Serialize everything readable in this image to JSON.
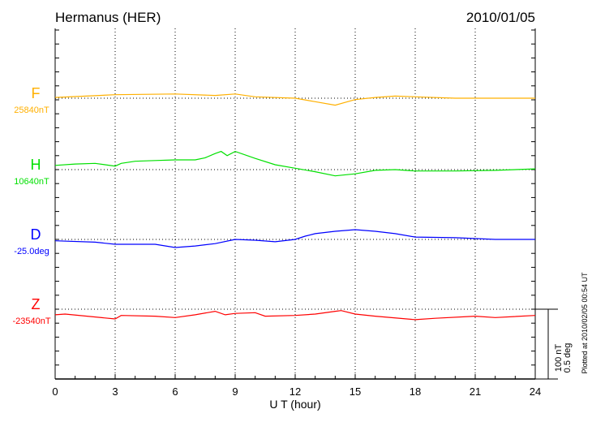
{
  "header": {
    "station": "Hermanus (HER)",
    "date": "2010/01/05"
  },
  "footer": {
    "plotted": "Plotted at 2010/02/05 00:54 UT"
  },
  "scale": {
    "nt": "100 nT",
    "deg": "0.5 deg"
  },
  "chart_data": {
    "type": "line",
    "xlabel": "U T (hour)",
    "xlim": [
      0,
      24
    ],
    "xticks": [
      "0",
      "3",
      "6",
      "9",
      "12",
      "15",
      "18",
      "21",
      "24"
    ],
    "grid": "dotted vertical every 3 hours, dotted baseline per component",
    "series": [
      {
        "name": "F",
        "baseline_label": "25840nT",
        "unit": "nT",
        "color": "#ffb000",
        "x": [
          0,
          3,
          6,
          8,
          9,
          10,
          12,
          13,
          14,
          15,
          16,
          17,
          18,
          20,
          24
        ],
        "y": [
          1,
          5,
          6,
          4,
          6,
          2,
          0,
          -5,
          -10,
          -2,
          1,
          3,
          2,
          0,
          0
        ]
      },
      {
        "name": "H",
        "baseline_label": "10640nT",
        "unit": "nT",
        "color": "#00e000",
        "x": [
          0,
          1,
          2,
          3,
          3.3,
          4,
          5,
          6,
          7,
          7.5,
          8,
          8.3,
          8.6,
          9,
          10,
          11,
          12,
          13,
          14,
          15,
          16,
          17,
          18,
          20,
          22,
          24
        ],
        "y": [
          6,
          8,
          9,
          5,
          9,
          12,
          13,
          14,
          14,
          17,
          23,
          26,
          20,
          26,
          16,
          7,
          2,
          -3,
          -9,
          -6,
          -1,
          0,
          -2,
          -2,
          -1,
          1
        ]
      },
      {
        "name": "D",
        "baseline_label": "-25.0deg",
        "unit": "deg",
        "color": "#0000ff",
        "x": [
          0,
          2,
          3,
          5,
          6,
          7,
          8,
          9,
          10,
          11,
          12,
          12.5,
          13,
          14,
          15,
          16,
          17,
          18,
          20,
          22,
          24
        ],
        "y": [
          -0.01,
          -0.02,
          -0.035,
          -0.035,
          -0.058,
          -0.047,
          -0.03,
          0,
          -0.006,
          -0.017,
          0,
          0.023,
          0.041,
          0.058,
          0.07,
          0.058,
          0.041,
          0.017,
          0.012,
          0,
          0
        ]
      },
      {
        "name": "Z",
        "baseline_label": "-23540nT",
        "unit": "nT",
        "color": "#ff0000",
        "x": [
          0,
          0.5,
          3,
          3.3,
          5,
          6,
          7,
          8,
          8.5,
          9,
          10,
          10.5,
          12,
          13,
          14,
          14.3,
          15,
          16,
          18,
          19,
          21,
          22,
          24
        ],
        "y": [
          -8,
          -7,
          -14,
          -9,
          -10,
          -12,
          -8,
          -3,
          -8,
          -6,
          -5,
          -10,
          -9,
          -7,
          -3,
          -2,
          -7,
          -10,
          -15,
          -13,
          -10,
          -12,
          -9
        ]
      }
    ]
  }
}
